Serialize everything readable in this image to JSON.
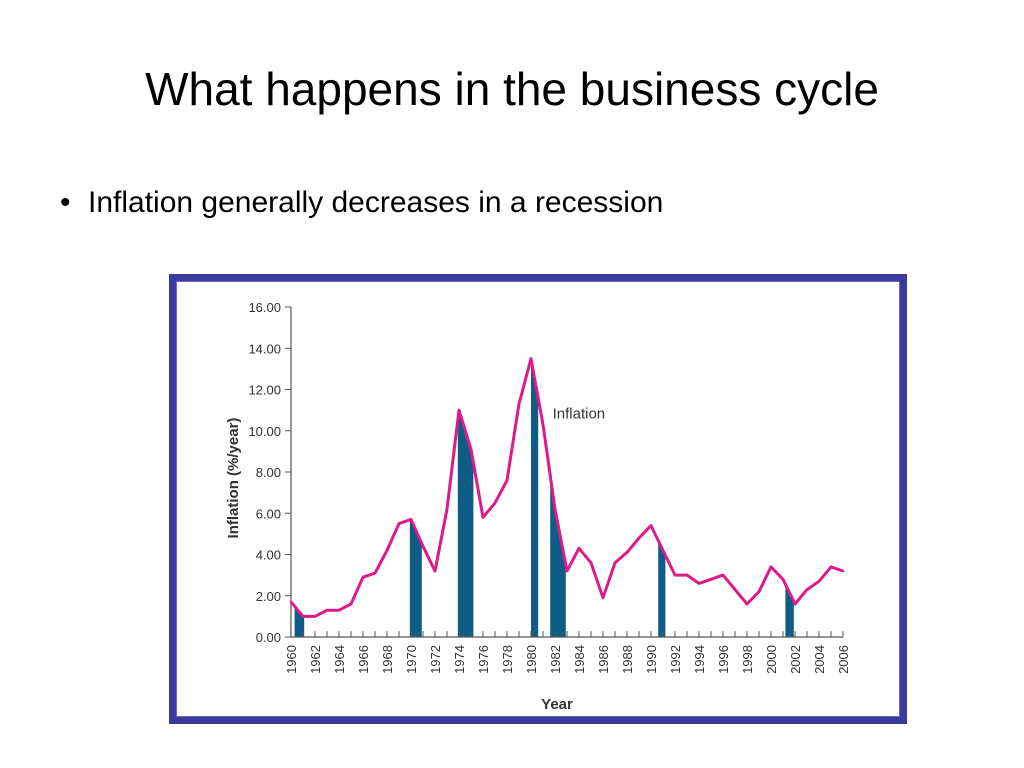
{
  "slide": {
    "title": "What happens in the business cycle",
    "bullet_symbol": "•",
    "bullet_text": "Inflation generally decreases in a recession"
  },
  "colors": {
    "line": "#e0198a",
    "recession": "#0d5d87",
    "frame": "#3a3a9e",
    "axis": "#555555"
  },
  "chart_data": {
    "type": "line",
    "title": "",
    "xlabel": "Year",
    "ylabel": "Inflation (%/year)",
    "ylim": [
      0,
      16
    ],
    "xlim": [
      1960,
      2006
    ],
    "y_ticks": [
      "0.00",
      "2.00",
      "4.00",
      "6.00",
      "8.00",
      "10.00",
      "12.00",
      "14.00",
      "16.00"
    ],
    "x_ticks": [
      "1960",
      "1962",
      "1964",
      "1966",
      "1968",
      "1970",
      "1972",
      "1974",
      "1976",
      "1978",
      "1980",
      "1982",
      "1984",
      "1986",
      "1988",
      "1990",
      "1992",
      "1994",
      "1996",
      "1998",
      "2000",
      "2002",
      "2004",
      "2006"
    ],
    "series": [
      {
        "name": "Inflation",
        "x": [
          1960,
          1961,
          1962,
          1963,
          1964,
          1965,
          1966,
          1967,
          1968,
          1969,
          1970,
          1971,
          1972,
          1973,
          1974,
          1975,
          1976,
          1977,
          1978,
          1979,
          1980,
          1981,
          1982,
          1983,
          1984,
          1985,
          1986,
          1987,
          1988,
          1989,
          1990,
          1991,
          1992,
          1993,
          1994,
          1995,
          1996,
          1997,
          1998,
          1999,
          2000,
          2001,
          2002,
          2003,
          2004,
          2005,
          2006
        ],
        "y": [
          1.7,
          1.0,
          1.0,
          1.3,
          1.3,
          1.6,
          2.9,
          3.1,
          4.2,
          5.5,
          5.7,
          4.4,
          3.2,
          6.2,
          11.0,
          9.1,
          5.8,
          6.5,
          7.6,
          11.3,
          13.5,
          10.3,
          6.2,
          3.2,
          4.3,
          3.6,
          1.9,
          3.6,
          4.1,
          4.8,
          5.4,
          4.2,
          3.0,
          3.0,
          2.6,
          2.8,
          3.0,
          2.3,
          1.6,
          2.2,
          3.4,
          2.8,
          1.6,
          2.3,
          2.7,
          3.4,
          3.2
        ]
      }
    ],
    "recessions": [
      [
        1960.3,
        1961.1
      ],
      [
        1969.9,
        1970.9
      ],
      [
        1973.9,
        1975.2
      ],
      [
        1980.0,
        1980.6
      ],
      [
        1981.6,
        1982.9
      ],
      [
        1990.6,
        1991.2
      ],
      [
        2001.2,
        2001.9
      ]
    ],
    "annotations": [
      {
        "text": "Inflation",
        "x": 1981.8,
        "y": 10.6
      }
    ]
  }
}
